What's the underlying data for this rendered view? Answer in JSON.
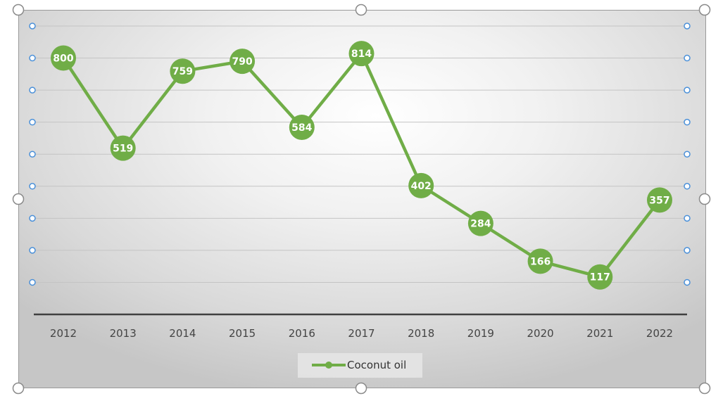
{
  "chart_data": {
    "type": "line",
    "title": "",
    "xlabel": "",
    "ylabel": "",
    "categories": [
      "2012",
      "2013",
      "2014",
      "2015",
      "2016",
      "2017",
      "2018",
      "2019",
      "2020",
      "2021",
      "2022"
    ],
    "series": [
      {
        "name": "Coconut oil",
        "values": [
          800,
          519,
          759,
          790,
          584,
          814,
          402,
          284,
          166,
          117,
          357
        ]
      }
    ],
    "ylim": [
      0,
      900
    ],
    "grid": true,
    "data_labels": true,
    "legend": "bottom",
    "colors": {
      "series": "#70ad47",
      "gridline": "#c4c4c4",
      "axis": "#404040",
      "handle_dot": "#4a90d9"
    }
  }
}
